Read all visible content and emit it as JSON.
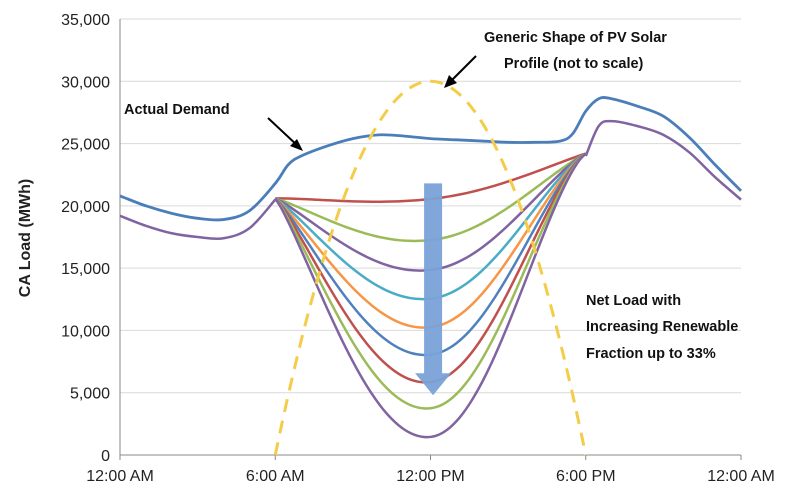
{
  "chart_data": {
    "type": "line",
    "ylabel": "CA Load (MWh)",
    "xlabel": "",
    "ylim": [
      0,
      35000
    ],
    "yticks": [
      0,
      5000,
      10000,
      15000,
      20000,
      25000,
      30000,
      35000
    ],
    "ytick_labels": [
      "0",
      "5,000",
      "10,000",
      "15,000",
      "20,000",
      "25,000",
      "30,000",
      "35,000"
    ],
    "xlim": [
      0,
      24
    ],
    "xticks": [
      0,
      6,
      12,
      18,
      24
    ],
    "xtick_labels": [
      "12:00 AM",
      "6:00 AM",
      "12:00 PM",
      "6:00 PM",
      "12:00 AM"
    ],
    "grid": "horizontal",
    "demand": {
      "color": "#4a7ebb",
      "points": [
        [
          0,
          20800
        ],
        [
          1,
          20000
        ],
        [
          2,
          19400
        ],
        [
          3,
          19000
        ],
        [
          4,
          18900
        ],
        [
          5,
          19600
        ],
        [
          6,
          21800
        ],
        [
          6.5,
          23300
        ],
        [
          7,
          24000
        ],
        [
          8,
          24800
        ],
        [
          9,
          25400
        ],
        [
          10,
          25700
        ],
        [
          11,
          25600
        ],
        [
          12,
          25400
        ],
        [
          13,
          25300
        ],
        [
          14,
          25200
        ],
        [
          15,
          25100
        ],
        [
          16,
          25100
        ],
        [
          17,
          25200
        ],
        [
          17.5,
          25800
        ],
        [
          18,
          27600
        ],
        [
          18.5,
          28600
        ],
        [
          19,
          28600
        ],
        [
          20,
          28000
        ],
        [
          21,
          27200
        ],
        [
          22,
          25500
        ],
        [
          23,
          23300
        ],
        [
          24,
          21200
        ]
      ]
    },
    "base": {
      "color": "#8064a2",
      "points": [
        [
          0,
          19200
        ],
        [
          1,
          18400
        ],
        [
          2,
          17800
        ],
        [
          3,
          17500
        ],
        [
          4,
          17400
        ],
        [
          5,
          18200
        ],
        [
          6,
          20500
        ]
      ]
    },
    "evening": {
      "color": "#8064a2",
      "points": [
        [
          18,
          24000
        ],
        [
          18.5,
          26400
        ],
        [
          19,
          26800
        ],
        [
          20,
          26400
        ],
        [
          21,
          25700
        ],
        [
          22,
          24300
        ],
        [
          23,
          22300
        ],
        [
          24,
          20500
        ]
      ]
    },
    "net_load_troughs": [
      {
        "color": "#c0504d",
        "value": 22300
      },
      {
        "color": "#9bbb59",
        "value": 20200
      },
      {
        "color": "#8064a2",
        "value": 17800
      },
      {
        "color": "#4bacc6",
        "value": 15500
      },
      {
        "color": "#f79646",
        "value": 13200
      },
      {
        "color": "#4f81bd",
        "value": 11000
      },
      {
        "color": "#c0504d",
        "value": 8800
      },
      {
        "color": "#9bbb59",
        "value": 6700
      },
      {
        "color": "#8064a2",
        "value": 4400
      }
    ],
    "pv_profile": {
      "color": "#f5cc4a",
      "start_hour": 6,
      "peak_hour": 12,
      "end_hour": 18,
      "peak_value": 30000
    },
    "arrow": {
      "color": "#7aa2d8",
      "x_hour": 12.1,
      "from": 21800,
      "to": 4800
    },
    "annotations": {
      "demand": "Actual Demand",
      "pv_line1": "Generic Shape of PV Solar",
      "pv_line2": "Profile (not to scale)",
      "net_line1": "Net Load with",
      "net_line2": "Increasing Renewable",
      "net_line3": "Fraction up to 33%"
    }
  }
}
